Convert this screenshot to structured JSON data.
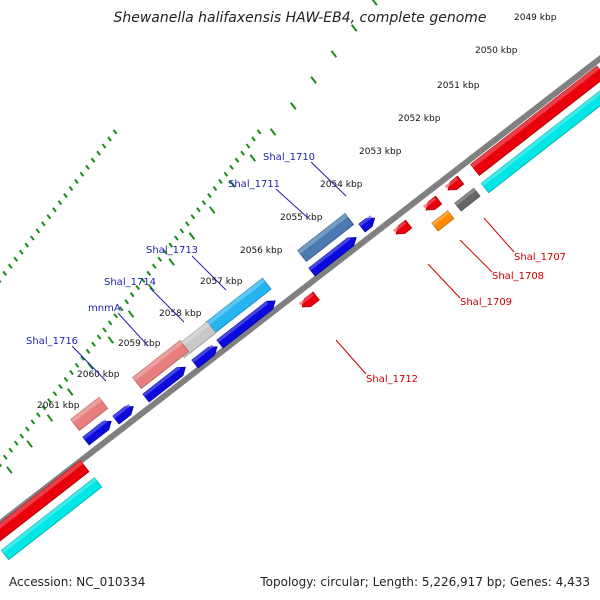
{
  "title": "Shewanella halifaxensis HAW-EB4, complete genome",
  "accession": "Accession: NC_010334",
  "summary": "Topology: circular; Length: 5,226,917 bp; Genes: 4,433",
  "colors": {
    "backbone": "#808080",
    "tick": "#1a8a1a",
    "label_plus_strand": "#1f1fb0",
    "label_minus_strand": "#d00000",
    "cds_blue": "#0a0adc",
    "cds_red": "#e8000a",
    "cds_cyan": "#00e5e5",
    "cds_steel": "#4a7ab0",
    "cds_lightblue": "#26b4f0",
    "cds_pink": "#e87f7f",
    "cds_grey": "#c8c8c8",
    "cds_orange": "#ff8c00",
    "cds_darkgrey": "#666666"
  },
  "ticks": [
    "2049 kbp",
    "2050 kbp",
    "2051 kbp",
    "2052 kbp",
    "2053 kbp",
    "2054 kbp",
    "2055 kbp",
    "2056 kbp",
    "2057 kbp",
    "2058 kbp",
    "2059 kbp",
    "2060 kbp",
    "2061 kbp"
  ],
  "gene_labels": {
    "plus": [
      "Shal_1710",
      "Shal_1711",
      "Shal_1713",
      "Shal_1714",
      "mnmA",
      "Shal_1716"
    ],
    "minus": [
      "Shal_1707",
      "Shal_1708",
      "Shal_1709",
      "Shal_1712"
    ]
  }
}
